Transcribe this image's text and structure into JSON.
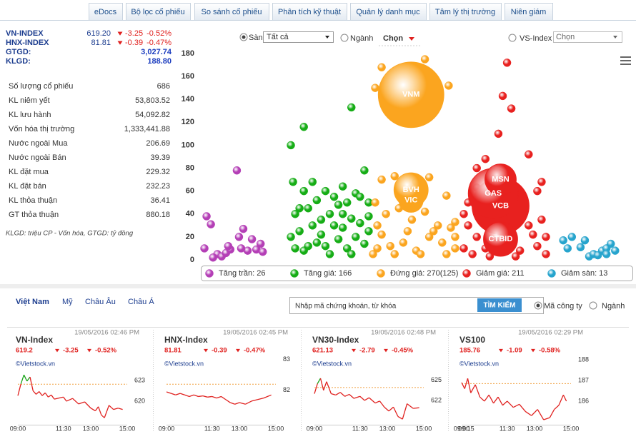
{
  "tabs": [
    "eDocs",
    "Bộ lọc cổ phiếu",
    "So sánh cổ phiếu",
    "Phân tích kỹ thuật",
    "Quản lý danh mục",
    "Tâm lý thị trường",
    "Niên giám"
  ],
  "indices": [
    {
      "name": "VN-INDEX",
      "value": "619.20",
      "change": "-3.25",
      "pct": "-0.52%"
    },
    {
      "name": "HNX-INDEX",
      "value": "81.81",
      "change": "-0.39",
      "pct": "-0.47%"
    }
  ],
  "summary": [
    {
      "label": "GTGD:",
      "value": "3,027.74"
    },
    {
      "label": "KLGD:",
      "value": "188.80"
    }
  ],
  "stats": [
    [
      "Số lượng cổ phiếu",
      "686"
    ],
    [
      "KL niêm yết",
      "53,803.52"
    ],
    [
      "KL lưu hành",
      "54,092.82"
    ],
    [
      "Vốn hóa thị trường",
      "1,333,441.88"
    ],
    [
      "Nước ngoài Mua",
      "206.69"
    ],
    [
      "Nước ngoài Bán",
      "39.39"
    ],
    [
      "KL đặt mua",
      "229.32"
    ],
    [
      "KL đặt bán",
      "232.23"
    ],
    [
      "KL thỏa thuận",
      "36.41"
    ],
    [
      "GT thỏa thuận",
      "880.18"
    ]
  ],
  "footnote": "KLGD: triệu CP - Vốn hóa, GTGD: tỷ đồng",
  "filters": {
    "exchange": "Sàn",
    "exchange_select": "Tất cả",
    "sector": "Ngành",
    "sector_select": "Chọn",
    "vs_index": "VS-Index",
    "vs_select": "Chọn"
  },
  "markets": [
    "Việt Nam",
    "Mỹ",
    "Châu Âu",
    "Châu Á"
  ],
  "search": {
    "placeholder": "Nhập mã chứng khoán, từ khóa",
    "button": "TÌM KIẾM",
    "options": [
      "Mã công ty",
      "Ngành"
    ]
  },
  "chart_data": [
    {
      "type": "scatter",
      "xlim": [
        0,
        100
      ],
      "ylim": [
        0,
        180
      ],
      "yticks": [
        0,
        20,
        40,
        60,
        80,
        100,
        120,
        140,
        160,
        180
      ],
      "series": [
        {
          "name": "Tăng trần: 26",
          "color": "#b43fb6",
          "x": [
            1.5,
            2.5,
            1,
            4,
            5,
            6,
            7,
            6.5,
            9,
            8.5,
            10,
            11,
            12,
            13,
            14,
            14.5,
            3,
            9.5
          ],
          "y": [
            38,
            31,
            10,
            5,
            3,
            6,
            9,
            12,
            20,
            78,
            27,
            8,
            18,
            9,
            14,
            7,
            2,
            10
          ]
        },
        {
          "name": "Tăng giá: 166",
          "color": "#16ad16",
          "x": [
            21,
            24,
            35,
            21.5,
            24,
            26,
            29,
            31,
            33,
            36,
            38,
            22,
            25,
            27,
            30,
            32,
            34,
            37,
            39,
            21,
            23,
            26,
            28,
            31,
            33,
            35,
            37,
            39,
            22,
            24,
            27,
            29,
            32,
            34,
            36,
            38,
            39,
            23,
            28,
            30,
            35,
            25,
            33
          ],
          "y": [
            100,
            116,
            133,
            68,
            60,
            68,
            60,
            55,
            64,
            58,
            78,
            40,
            45,
            52,
            40,
            48,
            50,
            55,
            50,
            20,
            25,
            30,
            35,
            30,
            28,
            36,
            32,
            38,
            10,
            8,
            15,
            12,
            18,
            10,
            20,
            14,
            25,
            45,
            22,
            5,
            5,
            12,
            40
          ]
        },
        {
          "name": "Đứng giá: 270(125)",
          "color": "#fba51f",
          "x": [
            40.5,
            42,
            45,
            50,
            53,
            57,
            41,
            43,
            46,
            49,
            52,
            55,
            58,
            41,
            44,
            47,
            50,
            53,
            56,
            59,
            42,
            48,
            54,
            59,
            45,
            51,
            57,
            40,
            59,
            49,
            40.5,
            57.5,
            42,
            52,
            55
          ],
          "y": [
            50,
            70,
            73,
            68,
            72,
            56,
            30,
            40,
            45,
            35,
            42,
            30,
            28,
            10,
            12,
            15,
            8,
            20,
            15,
            10,
            22,
            25,
            25,
            33,
            5,
            5,
            5,
            5,
            20,
            52,
            150,
            152,
            168,
            175,
            140
          ]
        },
        {
          "name": "Giảm giá: 211",
          "color": "#e8211f",
          "x": [
            71,
            70,
            69,
            72,
            76,
            64,
            66,
            64,
            78,
            79,
            61,
            62,
            64,
            66,
            74,
            78,
            80,
            61,
            63,
            76,
            79,
            62,
            80,
            67,
            73,
            77
          ],
          "y": [
            172,
            143,
            110,
            132,
            92,
            80,
            88,
            63,
            60,
            68,
            40,
            30,
            20,
            10,
            8,
            12,
            20,
            10,
            5,
            30,
            35,
            50,
            5,
            3,
            3,
            22
          ]
        },
        {
          "name": "Giảm sàn: 13",
          "color": "#26a4cd",
          "x": [
            84,
            85,
            86,
            88,
            90,
            91,
            92,
            93,
            94,
            95,
            96,
            94,
            89
          ],
          "y": [
            17,
            10,
            20,
            11,
            3,
            5,
            4,
            8,
            10,
            14,
            8,
            5,
            17
          ]
        }
      ],
      "bubbles": [
        {
          "label": "VNM",
          "x": 48.8,
          "y": 144,
          "size": 46,
          "color": "#fba51f"
        },
        {
          "label": "VIC",
          "x": 48.8,
          "y": 52,
          "size": 17,
          "color": "#fba51f"
        },
        {
          "label": "BVH",
          "x": 48.8,
          "y": 61,
          "size": 24,
          "color": "#fba51f"
        },
        {
          "label": "VCB",
          "x": 69.5,
          "y": 47,
          "size": 40,
          "color": "#e8211f"
        },
        {
          "label": "GAS",
          "x": 67.8,
          "y": 58,
          "size": 35,
          "color": "#e8211f"
        },
        {
          "label": "MSN",
          "x": 69.5,
          "y": 70,
          "size": 22,
          "color": "#e8211f"
        },
        {
          "label": "CTBID",
          "x": 69.5,
          "y": 18,
          "size": 24,
          "color": "#e8211f"
        }
      ]
    },
    {
      "type": "line",
      "title": "VN-Index",
      "timestamp": "19/05/2016 02:46 PM",
      "value": "619.2",
      "change": "-3.25",
      "pct": "-0.52%",
      "source": "©Vietstock.vn",
      "ref": 622.45,
      "xlim": [
        0,
        360
      ],
      "ylim": [
        616.6,
        626.4
      ],
      "yticks": [
        620,
        623
      ],
      "xticks": [
        {
          "value": 0,
          "label": "09:00"
        },
        {
          "value": 150,
          "label": "11:30"
        },
        {
          "value": 240,
          "label": "13:00"
        },
        {
          "value": 360,
          "label": "15:00"
        }
      ],
      "x": [
        0,
        10,
        20,
        30,
        40,
        50,
        60,
        70,
        80,
        90,
        100,
        110,
        120,
        150,
        160,
        180,
        200,
        220,
        240,
        255,
        265,
        275,
        285,
        300,
        315,
        330,
        345
      ],
      "values": [
        620.8,
        622.5,
        623.8,
        622.9,
        623.5,
        621.5,
        621.0,
        621.4,
        620.8,
        621.2,
        620.6,
        620.9,
        620.3,
        620.6,
        620.0,
        620.4,
        619.6,
        619.9,
        619.0,
        618.6,
        619.2,
        618.0,
        617.6,
        619.4,
        618.8,
        619.0,
        618.8
      ]
    },
    {
      "type": "line",
      "title": "HNX-Index",
      "timestamp": "19/05/2016 02:45 PM",
      "value": "81.81",
      "change": "-0.39",
      "pct": "-0.47%",
      "source": "©Vietstock.vn",
      "ref": 82.2,
      "xlim": [
        0,
        360
      ],
      "ylim": [
        80.88,
        83.09
      ],
      "yticks": [
        82,
        83
      ],
      "xticks": [
        {
          "value": 0,
          "label": "09:00"
        },
        {
          "value": 150,
          "label": "11:30"
        },
        {
          "value": 240,
          "label": "13:00"
        },
        {
          "value": 360,
          "label": "15:00"
        }
      ],
      "x": [
        0,
        15,
        30,
        45,
        60,
        75,
        90,
        105,
        120,
        135,
        150,
        165,
        180,
        195,
        210,
        225,
        240,
        260,
        280,
        300,
        320,
        345
      ],
      "values": [
        81.95,
        81.9,
        81.85,
        81.9,
        81.85,
        81.8,
        81.85,
        81.8,
        81.82,
        81.78,
        81.8,
        81.75,
        81.8,
        81.7,
        81.6,
        81.55,
        81.6,
        81.55,
        81.65,
        81.7,
        81.75,
        81.85
      ]
    },
    {
      "type": "line",
      "title": "VN30-Index",
      "timestamp": "19/05/2016 02:48 PM",
      "value": "621.13",
      "change": "-2.79",
      "pct": "-0.45%",
      "source": "©Vietstock.vn",
      "ref": 623.92,
      "xlim": [
        0,
        360
      ],
      "ylim": [
        618.36,
        628.5
      ],
      "yticks": [
        622,
        625
      ],
      "xticks": [
        {
          "value": 0,
          "label": "09:00"
        },
        {
          "value": 150,
          "label": "11:30"
        },
        {
          "value": 240,
          "label": "13:00"
        },
        {
          "value": 360,
          "label": "15:00"
        }
      ],
      "x": [
        0,
        10,
        20,
        30,
        40,
        55,
        70,
        85,
        100,
        115,
        130,
        150,
        165,
        180,
        200,
        215,
        230,
        245,
        260,
        275,
        290,
        305,
        325,
        345
      ],
      "values": [
        623,
        624.5,
        625.3,
        623.5,
        624.8,
        623,
        622.8,
        623.2,
        622.6,
        622.9,
        622.3,
        622.6,
        622,
        622.4,
        621.6,
        621.9,
        621,
        620.4,
        621,
        619.6,
        619.2,
        621.5,
        620.8,
        620.9
      ]
    },
    {
      "type": "line",
      "title": "VS100",
      "timestamp": "19/05/2016 02:29 PM",
      "value": "185.76",
      "change": "-1.09",
      "pct": "-0.58%",
      "source": "©Vietstock.vn",
      "ref": 186.85,
      "xlim": [
        0,
        360
      ],
      "ylim": [
        184.86,
        188.14
      ],
      "yticks": [
        186,
        187,
        188
      ],
      "xticks": [
        {
          "value": 0,
          "label": "09:00"
        },
        {
          "value": 15,
          "label": "09:15"
        },
        {
          "value": 150,
          "label": "11:30"
        },
        {
          "value": 240,
          "label": "13:00"
        },
        {
          "value": 360,
          "label": "15:00"
        }
      ],
      "x": [
        0,
        10,
        20,
        30,
        45,
        60,
        75,
        90,
        105,
        120,
        135,
        150,
        170,
        190,
        210,
        230,
        250,
        270,
        290,
        305,
        320,
        335,
        345
      ],
      "values": [
        186.9,
        186.6,
        187.1,
        186.4,
        186.8,
        186.2,
        186.0,
        186.3,
        185.9,
        186.2,
        185.8,
        186.0,
        185.7,
        185.85,
        185.5,
        185.3,
        185.6,
        185.1,
        185.2,
        185.6,
        185.8,
        186.3,
        186.0
      ]
    }
  ]
}
